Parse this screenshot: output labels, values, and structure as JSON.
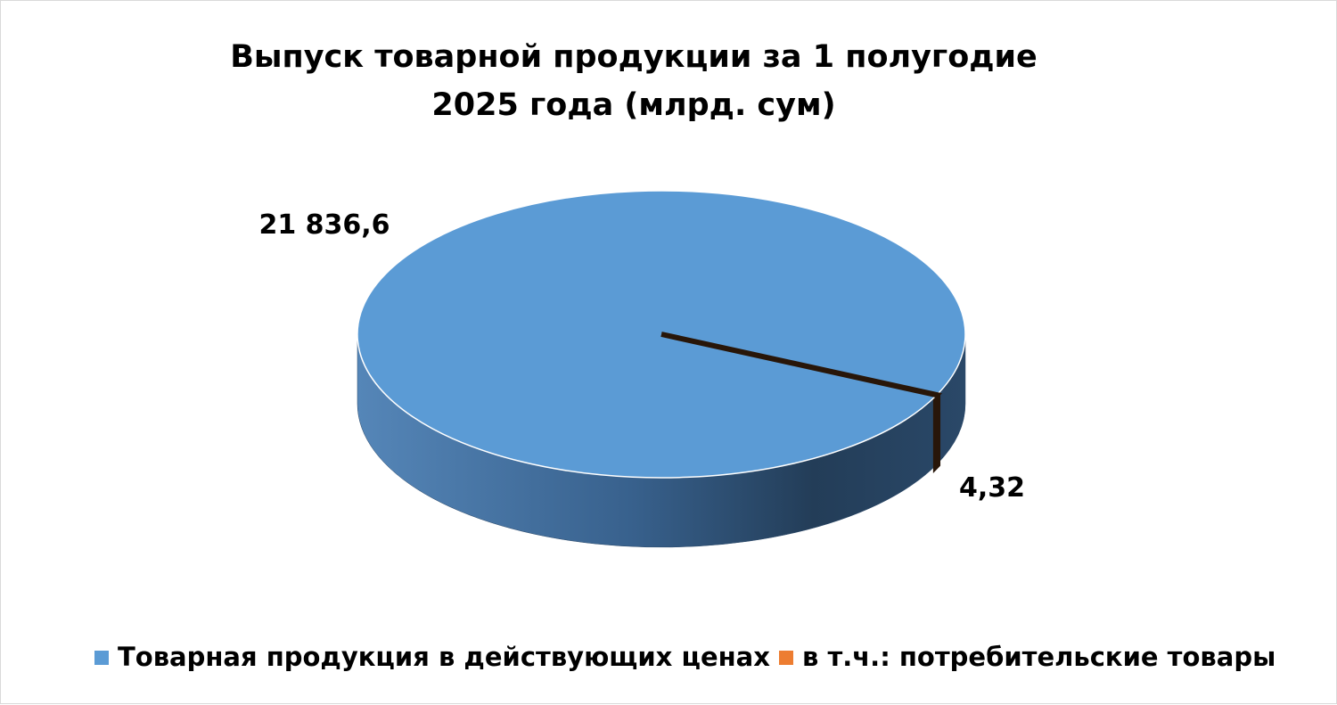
{
  "chart_data": {
    "type": "pie",
    "title": "Выпуск товарной продукции за 1 полугодие 2025 года (млрд. сум)",
    "categories": [
      "Товарная продукция в действующих ценах",
      "в т.ч.: потребительские товары"
    ],
    "values": [
      21836.6,
      4.32
    ],
    "value_labels": [
      "21 836,6",
      "4,32"
    ],
    "colors": [
      "#5b9bd5",
      "#ed7d31"
    ]
  }
}
